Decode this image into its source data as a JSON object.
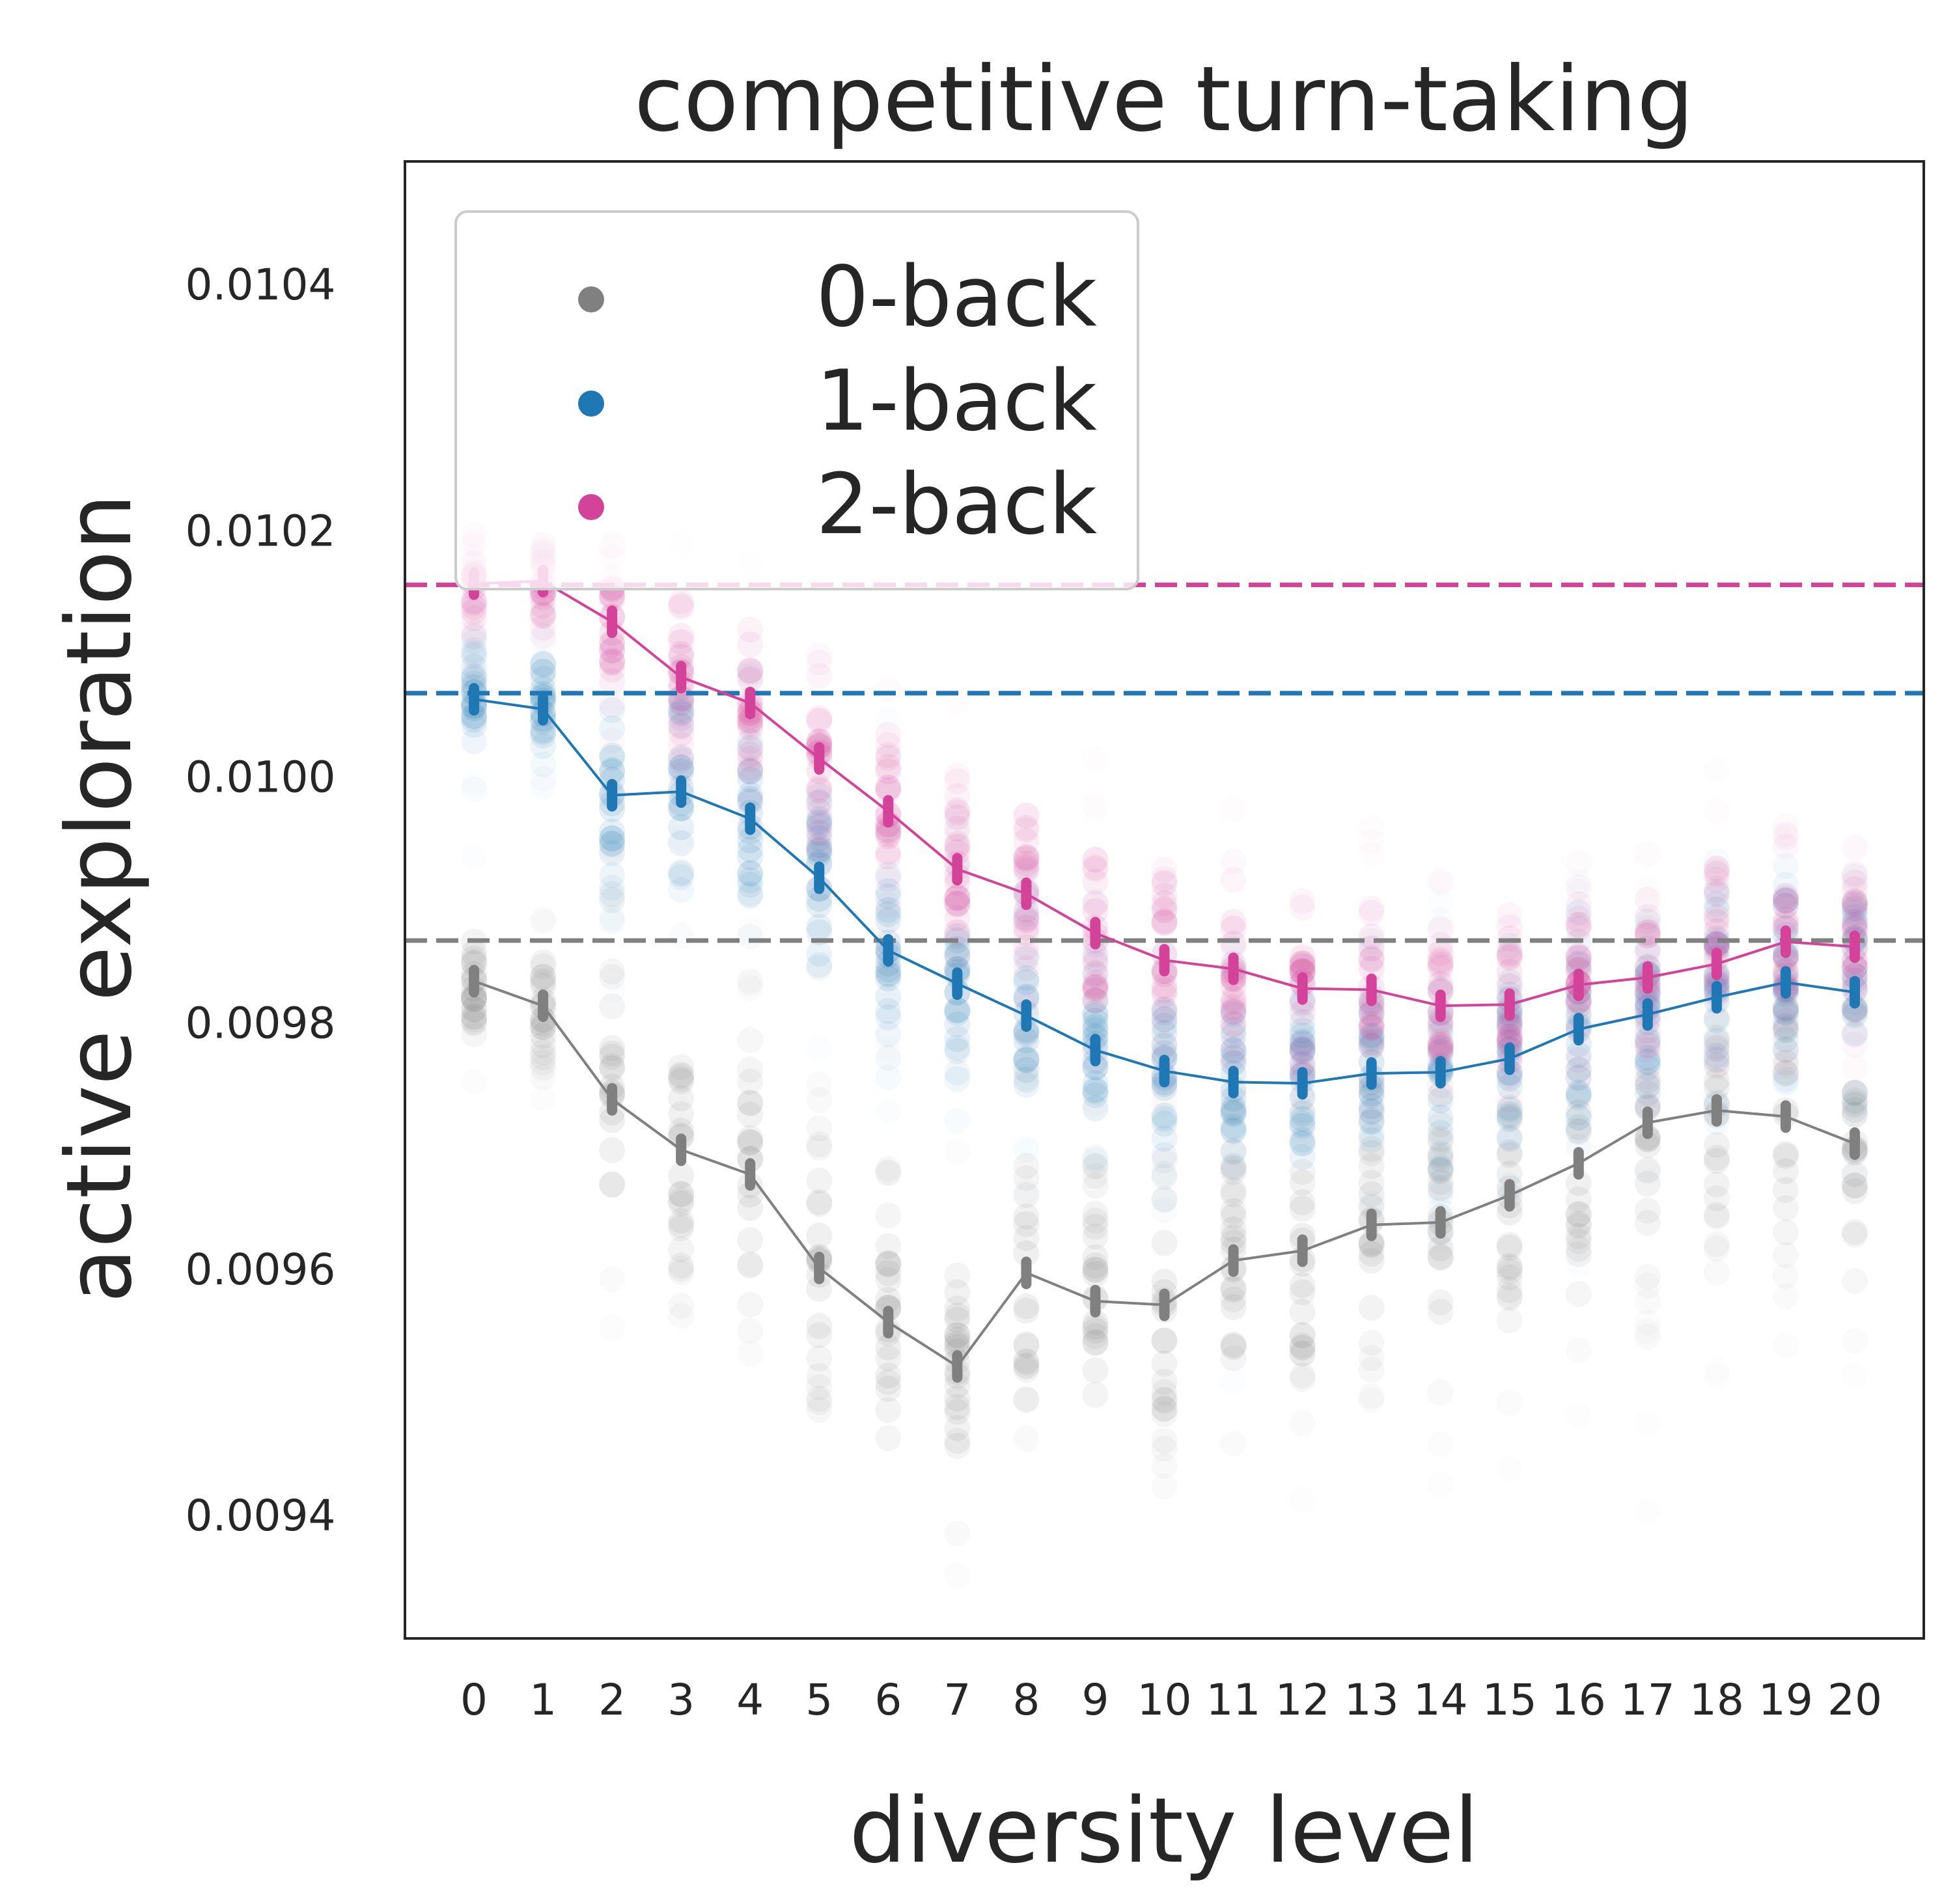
{
  "chart_data": {
    "type": "line",
    "title": "competitive turn-taking",
    "xlabel": "diversity level",
    "ylabel": "active exploration",
    "x": [
      0,
      1,
      2,
      3,
      4,
      5,
      6,
      7,
      8,
      9,
      10,
      11,
      12,
      13,
      14,
      15,
      16,
      17,
      18,
      19,
      20
    ],
    "x_tick_labels": [
      "0",
      "1",
      "2",
      "3",
      "4",
      "5",
      "6",
      "7",
      "8",
      "9",
      "10",
      "11",
      "12",
      "13",
      "14",
      "15",
      "16",
      "17",
      "18",
      "19",
      "20"
    ],
    "y_ticks": [
      0.0094,
      0.0096,
      0.0098,
      0.01,
      0.0102,
      0.0104
    ],
    "y_tick_labels": [
      "0.0094",
      "0.0096",
      "0.0098",
      "0.0100",
      "0.0102",
      "0.0104"
    ],
    "xlim": [
      -1.0,
      21.0
    ],
    "ylim": [
      0.0093,
      0.0105
    ],
    "grid": false,
    "legend_position": "top-left",
    "series": [
      {
        "name": "0-back",
        "color": "#808080",
        "baseline": 0.009867,
        "values": [
          0.009834,
          0.009814,
          0.009738,
          0.009697,
          0.009677,
          0.009601,
          0.009557,
          0.009521,
          0.009597,
          0.009574,
          0.009571,
          0.009607,
          0.009615,
          0.009636,
          0.009638,
          0.00966,
          0.009686,
          0.009719,
          0.009729,
          0.009724,
          0.009702
        ]
      },
      {
        "name": "1-back",
        "color": "#1f77b4",
        "baseline": 0.010068,
        "values": [
          0.010063,
          0.010055,
          0.009985,
          0.009988,
          0.009966,
          0.009918,
          0.009859,
          0.009832,
          0.009806,
          0.009778,
          0.009761,
          0.009752,
          0.009751,
          0.009759,
          0.00976,
          0.009771,
          0.009795,
          0.009807,
          0.009821,
          0.009833,
          0.009825
        ]
      },
      {
        "name": "2-back",
        "color": "#d4439a",
        "baseline": 0.010156,
        "values": [
          0.010157,
          0.010159,
          0.010126,
          0.010081,
          0.01006,
          0.010015,
          0.009972,
          0.009925,
          0.009905,
          0.009873,
          0.009851,
          0.009844,
          0.009828,
          0.009827,
          0.009814,
          0.009815,
          0.009831,
          0.009837,
          0.009848,
          0.009866,
          0.009862
        ]
      }
    ]
  }
}
